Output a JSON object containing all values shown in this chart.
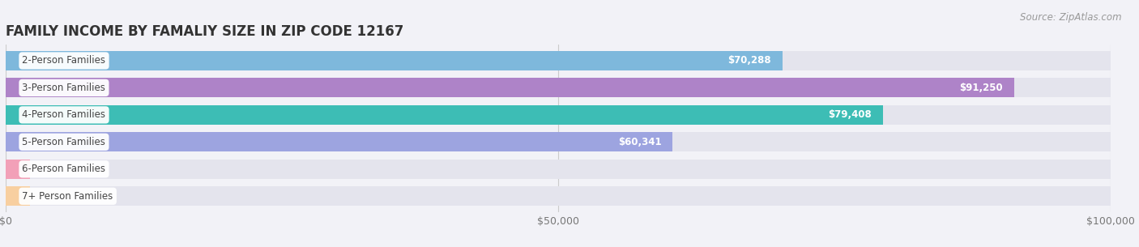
{
  "title": "FAMILY INCOME BY FAMALIY SIZE IN ZIP CODE 12167",
  "source": "Source: ZipAtlas.com",
  "categories": [
    "2-Person Families",
    "3-Person Families",
    "4-Person Families",
    "5-Person Families",
    "6-Person Families",
    "7+ Person Families"
  ],
  "values": [
    70288,
    91250,
    79408,
    60341,
    0,
    0
  ],
  "bar_colors": [
    "#7eb8dc",
    "#ae83c8",
    "#3dbdb5",
    "#9da4e0",
    "#f2a0b8",
    "#f8cfa0"
  ],
  "xlim": [
    0,
    100000
  ],
  "xticks": [
    0,
    50000,
    100000
  ],
  "xtick_labels": [
    "$0",
    "$50,000",
    "$100,000"
  ],
  "background_color": "#f2f2f7",
  "bar_bg_color": "#e4e4ed",
  "title_fontsize": 12,
  "label_fontsize": 8.5,
  "value_fontsize": 8.5,
  "source_fontsize": 8.5,
  "bar_height": 0.72,
  "bar_gap": 0.28
}
